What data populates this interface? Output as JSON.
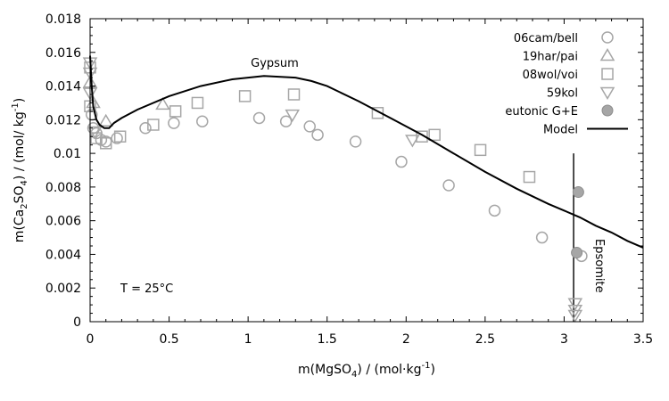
{
  "chart_data": {
    "type": "scatter",
    "title": "",
    "xlabel": {
      "main": "m(MgSO",
      "sub": "4",
      "rest": ") / (mol·kg",
      "sup": "-1",
      "end": ")"
    },
    "ylabel": {
      "main": "m(Ca",
      "sub1": "2",
      "mid": "SO",
      "sub2": "4",
      "rest": ") / (mol/ kg",
      "sup": "-1",
      "end": ")"
    },
    "xlim": [
      0,
      3.5
    ],
    "ylim": [
      0,
      0.018
    ],
    "x_ticks": [
      "0",
      "0.5",
      "1",
      "1.5",
      "2",
      "2.5",
      "3",
      "3.5"
    ],
    "y_ticks": [
      "0",
      "0.002",
      "0.004",
      "0.006",
      "0.008",
      "0.01",
      "0.012",
      "0.014",
      "0.016",
      "0.018"
    ],
    "grid": false,
    "legend_position": "top-right",
    "annotations": {
      "gypsum": "Gypsum",
      "epsomite": "Epsomite",
      "temperature": "T = 25°C"
    },
    "epsomite_line": {
      "x": 3.06,
      "y_from": 0,
      "y_to": 0.01
    },
    "series": [
      {
        "name": "06cam/bell",
        "marker": "circle",
        "color": "#a6a6a6",
        "points": [
          [
            0.01,
            0.0123
          ],
          [
            0.02,
            0.0115
          ],
          [
            0.04,
            0.0112
          ],
          [
            0.07,
            0.0108
          ],
          [
            0.1,
            0.0107
          ],
          [
            0.17,
            0.0109
          ],
          [
            0.35,
            0.0115
          ],
          [
            0.53,
            0.0118
          ],
          [
            0.71,
            0.0119
          ],
          [
            1.07,
            0.0121
          ],
          [
            1.24,
            0.0119
          ],
          [
            1.39,
            0.0116
          ],
          [
            1.44,
            0.0111
          ],
          [
            1.68,
            0.0107
          ],
          [
            1.97,
            0.0095
          ],
          [
            2.27,
            0.0081
          ],
          [
            2.56,
            0.0066
          ],
          [
            2.86,
            0.005
          ],
          [
            3.11,
            0.0039
          ]
        ]
      },
      {
        "name": "19har/pai",
        "marker": "triangle-up",
        "color": "#a6a6a6",
        "points": [
          [
            0.0,
            0.0142
          ],
          [
            0.02,
            0.013
          ],
          [
            0.1,
            0.0119
          ],
          [
            0.46,
            0.0129
          ]
        ]
      },
      {
        "name": "08wol/voi",
        "marker": "square",
        "color": "#a6a6a6",
        "points": [
          [
            0.0,
            0.0151
          ],
          [
            0.0,
            0.0128
          ],
          [
            0.04,
            0.0109
          ],
          [
            0.1,
            0.0106
          ],
          [
            0.19,
            0.011
          ],
          [
            0.4,
            0.0117
          ],
          [
            0.54,
            0.0125
          ],
          [
            0.68,
            0.013
          ],
          [
            0.98,
            0.0134
          ],
          [
            1.29,
            0.0135
          ],
          [
            1.82,
            0.0124
          ],
          [
            2.1,
            0.011
          ],
          [
            2.18,
            0.0111
          ],
          [
            2.47,
            0.0102
          ],
          [
            2.78,
            0.0086
          ]
        ]
      },
      {
        "name": "59kol",
        "marker": "triangle-down",
        "color": "#a6a6a6",
        "points": [
          [
            0.0,
            0.0154
          ],
          [
            0.0,
            0.0148
          ],
          [
            0.0,
            0.0136
          ],
          [
            0.03,
            0.0113
          ],
          [
            1.28,
            0.0123
          ],
          [
            2.04,
            0.0108
          ],
          [
            3.07,
            0.0011
          ],
          [
            3.07,
            0.0007
          ],
          [
            3.07,
            0.0004
          ]
        ]
      },
      {
        "name": "eutonic G+E",
        "marker": "filled-circle",
        "color": "#a6a6a6",
        "points": [
          [
            3.09,
            0.0077
          ],
          [
            3.08,
            0.0041
          ]
        ]
      },
      {
        "name": "Model",
        "marker": "line",
        "color": "#000000",
        "points": [
          [
            0.0,
            0.0158
          ],
          [
            0.01,
            0.014
          ],
          [
            0.02,
            0.0128
          ],
          [
            0.04,
            0.012
          ],
          [
            0.06,
            0.0117
          ],
          [
            0.09,
            0.0115
          ],
          [
            0.12,
            0.0115
          ],
          [
            0.15,
            0.0118
          ],
          [
            0.2,
            0.0121
          ],
          [
            0.3,
            0.0126
          ],
          [
            0.5,
            0.0134
          ],
          [
            0.7,
            0.014
          ],
          [
            0.9,
            0.0144
          ],
          [
            1.0,
            0.0145
          ],
          [
            1.1,
            0.0146
          ],
          [
            1.3,
            0.0145
          ],
          [
            1.4,
            0.0143
          ],
          [
            1.5,
            0.014
          ],
          [
            1.7,
            0.0131
          ],
          [
            1.9,
            0.0121
          ],
          [
            2.1,
            0.0111
          ],
          [
            2.3,
            0.01
          ],
          [
            2.5,
            0.0089
          ],
          [
            2.7,
            0.0079
          ],
          [
            2.9,
            0.007
          ],
          [
            3.0,
            0.0066
          ],
          [
            3.1,
            0.0062
          ],
          [
            3.2,
            0.0057
          ],
          [
            3.3,
            0.0053
          ],
          [
            3.4,
            0.0048
          ],
          [
            3.5,
            0.0044
          ]
        ]
      }
    ]
  }
}
